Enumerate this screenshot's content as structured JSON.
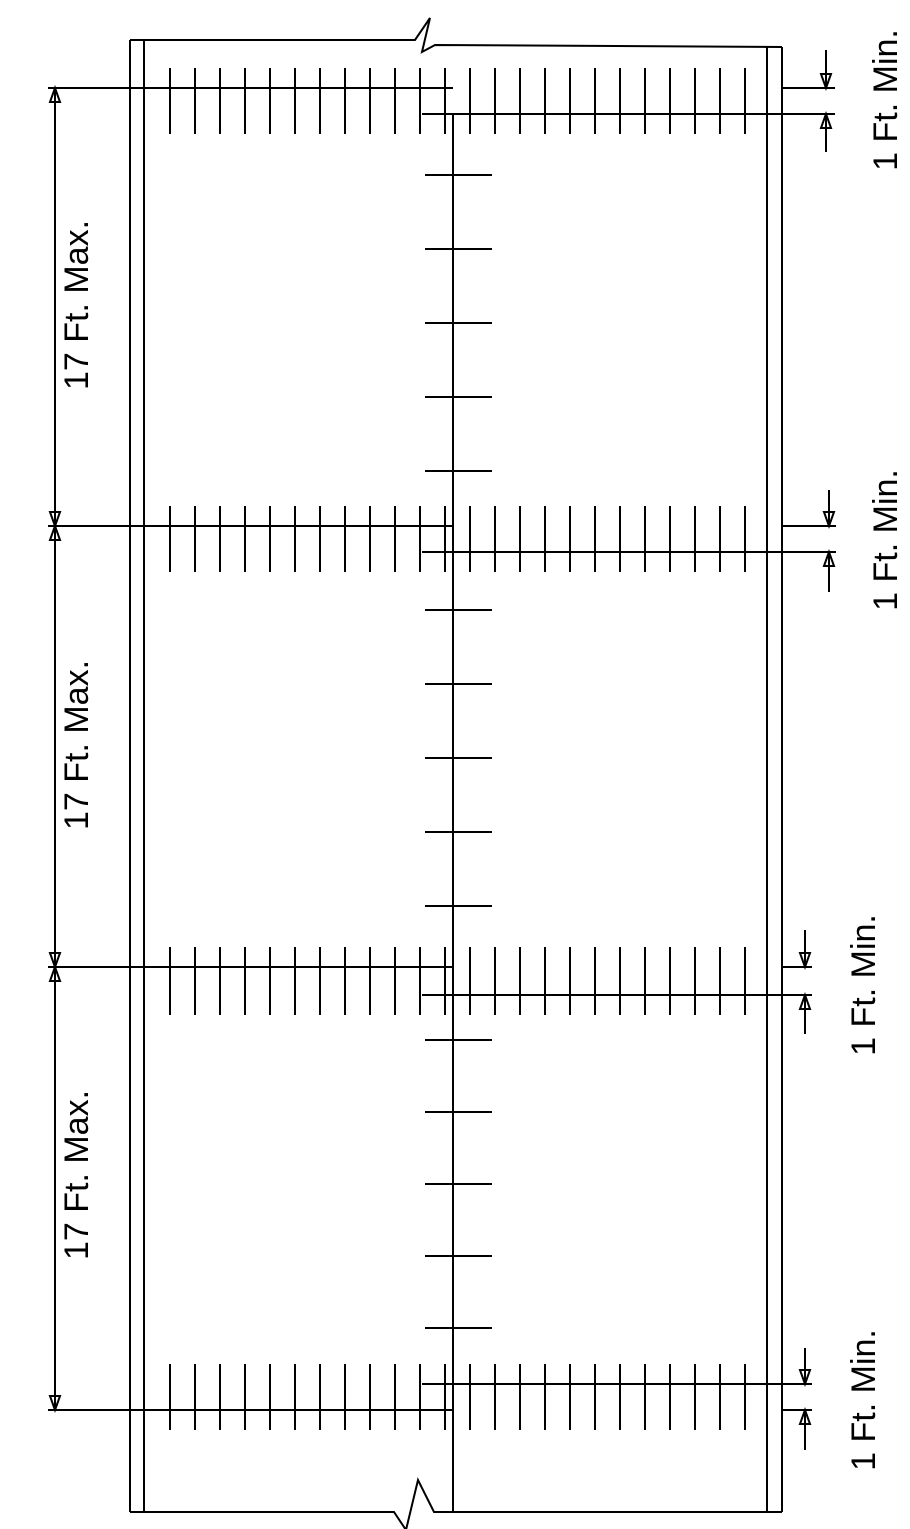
{
  "diagram": {
    "spacing_labels": [
      "17 Ft. Max.",
      "17 Ft. Max.",
      "17 Ft. Max."
    ],
    "offset_labels": [
      "1 Ft. Min.",
      "1 Ft. Min.",
      "1 Ft. Min.",
      "1 Ft. Min."
    ],
    "line_color": "#000000"
  }
}
